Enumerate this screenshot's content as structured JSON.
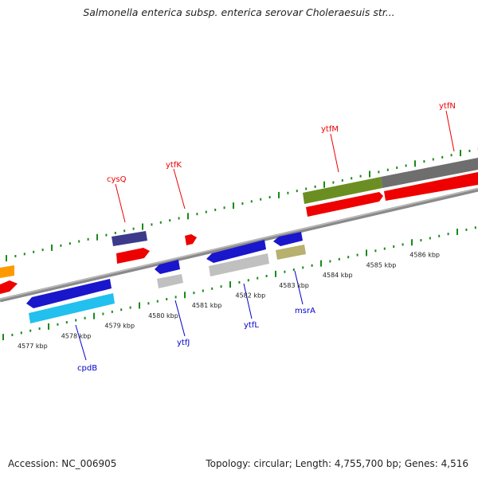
{
  "title": "Salmonella enterica subsp. enterica serovar Choleraesuis str...",
  "footer": {
    "accession": "Accession: NC_006905",
    "summary": "Topology: circular; Length: 4,755,700 bp; Genes: 4,516"
  },
  "colors": {
    "label_top": "#ff0000",
    "label_bottom": "#0000cc",
    "tick": "#1a8a1a",
    "backbone": "#8a8a8a"
  },
  "ticks": [
    {
      "label": "4577 kbp",
      "kbp": 4577
    },
    {
      "label": "4578 kbp",
      "kbp": 4578
    },
    {
      "label": "4579 kbp",
      "kbp": 4579
    },
    {
      "label": "4580 kbp",
      "kbp": 4580
    },
    {
      "label": "4581 kbp",
      "kbp": 4581
    },
    {
      "label": "4582 kbp",
      "kbp": 4582
    },
    {
      "label": "4583 kbp",
      "kbp": 4583
    },
    {
      "label": "4584 kbp",
      "kbp": 4584
    },
    {
      "label": "4585 kbp",
      "kbp": 4585
    },
    {
      "label": "4586 kbp",
      "kbp": 4586
    }
  ],
  "gene_labels": {
    "top": [
      "cysQ",
      "ytfK",
      "ytfM",
      "ytfN"
    ],
    "bottom": [
      "cpdB",
      "ytfJ",
      "ytfL",
      "msrA"
    ]
  }
}
